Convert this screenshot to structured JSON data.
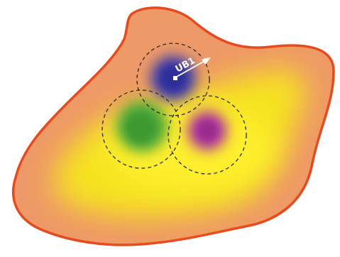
{
  "marker": {
    "label": "UB1"
  },
  "colors": {
    "outline": "#e8491d",
    "outer_fill": "#ee9a68",
    "low_zone": "#f6e61a",
    "blue_blob": "#3f3fa8",
    "green_blob": "#4aa63a",
    "magenta_blob": "#b0379f",
    "marker_arrow": "#ffffff"
  }
}
